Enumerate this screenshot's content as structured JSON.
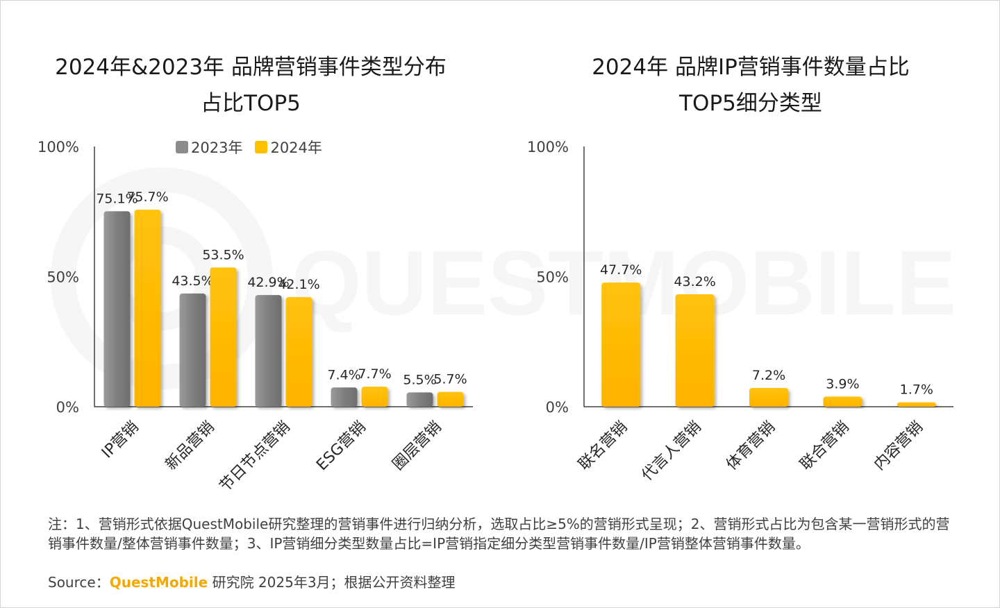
{
  "watermark": {
    "text": "QUESTMOBILE"
  },
  "legend": [
    "2023年",
    "2024年"
  ],
  "chart_data": [
    {
      "type": "bar",
      "title": [
        "2024年&2023年 品牌营销事件类型分布",
        "占比TOP5"
      ],
      "categories": [
        "IP营销",
        "新品营销",
        "节日节点营销",
        "ESG营销",
        "圈层营销"
      ],
      "series": [
        {
          "name": "2023年",
          "color": "#8c8c8c",
          "values": [
            75.1,
            43.5,
            42.9,
            7.4,
            5.5
          ],
          "labels": [
            "75.1%",
            "43.5%",
            "42.9%",
            "7.4%",
            "5.5%"
          ]
        },
        {
          "name": "2024年",
          "color": "#ffc000",
          "values": [
            75.7,
            53.5,
            42.1,
            7.7,
            5.7
          ],
          "labels": [
            "75.7%",
            "53.5%",
            "42.1%",
            "7.7%",
            "5.7%"
          ]
        }
      ],
      "yticks": [
        "0%",
        "50%",
        "100%"
      ],
      "ylim": [
        0,
        100
      ],
      "grid": false
    },
    {
      "type": "bar",
      "title": [
        "2024年 品牌IP营销事件数量占比",
        "TOP5细分类型"
      ],
      "categories": [
        "联名营销",
        "代言人营销",
        "体育营销",
        "联合营销",
        "内容营销"
      ],
      "series": [
        {
          "color": "#ffc000",
          "values": [
            47.7,
            43.2,
            7.2,
            3.9,
            1.7
          ],
          "labels": [
            "47.7%",
            "43.2%",
            "7.2%",
            "3.9%",
            "1.7%"
          ]
        }
      ],
      "yticks": [
        "0%",
        "50%",
        "100%"
      ],
      "ylim": [
        0,
        100
      ],
      "grid": false
    }
  ],
  "note": "注：1、营销形式依据QuestMobile研究整理的营销事件进行归纳分析，选取占比≥5%的营销形式呈现；2、营销形式占比为包含某一营销形式的营销事件数量/整体营销事件数量；3、IP营销细分类型数量占比=IP营销指定细分类型营销事件数量/IP营销整体营销事件数量。",
  "source": {
    "prefix": "Source：",
    "brand": "QuestMobile",
    "suffix": " 研究院 2025年3月；根据公开资料整理"
  }
}
